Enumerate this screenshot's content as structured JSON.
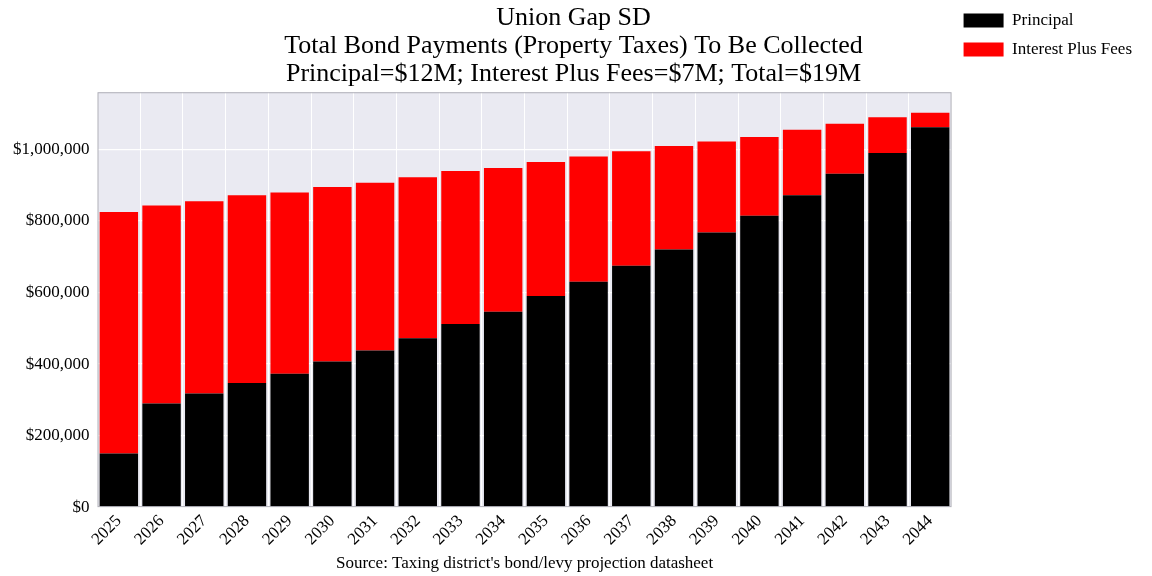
{
  "chart_data": {
    "type": "bar",
    "title": [
      "Union Gap SD",
      "Total Bond Payments (Property Taxes) To Be Collected",
      "Principal=$12M; Interest Plus Fees=$7M; Total=$19M"
    ],
    "x_label": "Source: Taxing district's bond/levy projection datasheet",
    "categories": [
      "2025",
      "2026",
      "2027",
      "2028",
      "2029",
      "2030",
      "2031",
      "2032",
      "2033",
      "2034",
      "2035",
      "2036",
      "2037",
      "2038",
      "2039",
      "2040",
      "2041",
      "2042",
      "2043",
      "2044"
    ],
    "series": [
      {
        "name": "Principal",
        "color": "#000000",
        "values": [
          150000,
          290000,
          318000,
          347000,
          373000,
          407000,
          438000,
          472000,
          512000,
          546000,
          590000,
          630000,
          675000,
          720000,
          768000,
          815000,
          872000,
          932000,
          990000,
          1062000
        ]
      },
      {
        "name": "Interest Plus Fees",
        "color": "#ff0000",
        "values": [
          675000,
          553000,
          537000,
          525000,
          507000,
          488000,
          469000,
          450000,
          428000,
          402000,
          375000,
          350000,
          320000,
          290000,
          254000,
          220000,
          183000,
          140000,
          100000,
          41000
        ]
      }
    ],
    "stacked": true,
    "ylim": [
      0,
      1160000
    ],
    "yticks": [
      {
        "value": 0,
        "label": "$0"
      },
      {
        "value": 200000,
        "label": "$200,000"
      },
      {
        "value": 400000,
        "label": "$400,000"
      },
      {
        "value": 600000,
        "label": "$600,000"
      },
      {
        "value": 800000,
        "label": "$800,000"
      },
      {
        "value": 1000000,
        "label": "$1,000,000"
      }
    ],
    "grid": true,
    "legend": "right"
  }
}
